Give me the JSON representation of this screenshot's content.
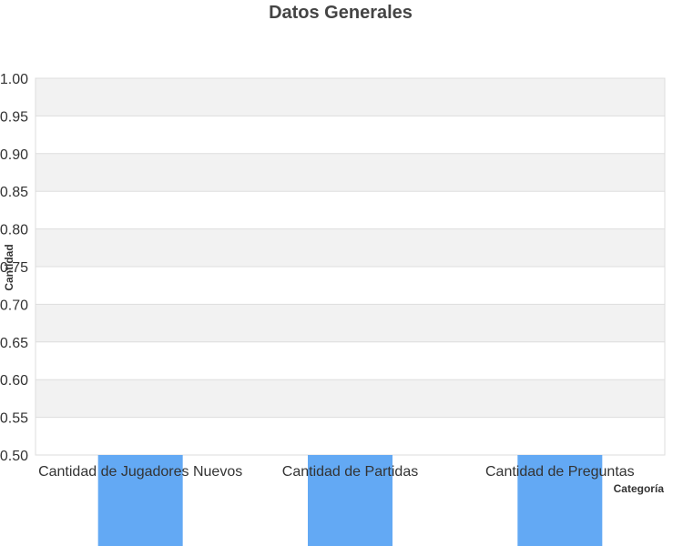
{
  "chart_data": {
    "type": "bar",
    "title": "Datos Generales",
    "xlabel": "Categoría",
    "ylabel": "Cantidad",
    "categories": [
      "Cantidad de Jugadores Nuevos",
      "Cantidad de Partidas",
      "Cantidad de Preguntas"
    ],
    "series": [
      {
        "values": [
          0,
          0,
          0
        ]
      }
    ],
    "ylim": [
      0.5,
      1.0
    ],
    "yticks": [
      "0.50",
      "0.55",
      "0.60",
      "0.65",
      "0.70",
      "0.75",
      "0.80",
      "0.85",
      "0.90",
      "0.95",
      "1.00"
    ],
    "grid": true,
    "legend": "none",
    "colors": {
      "bar": "#63a9f4",
      "band": "#f2f2f2",
      "grid": "#dddddd"
    }
  }
}
